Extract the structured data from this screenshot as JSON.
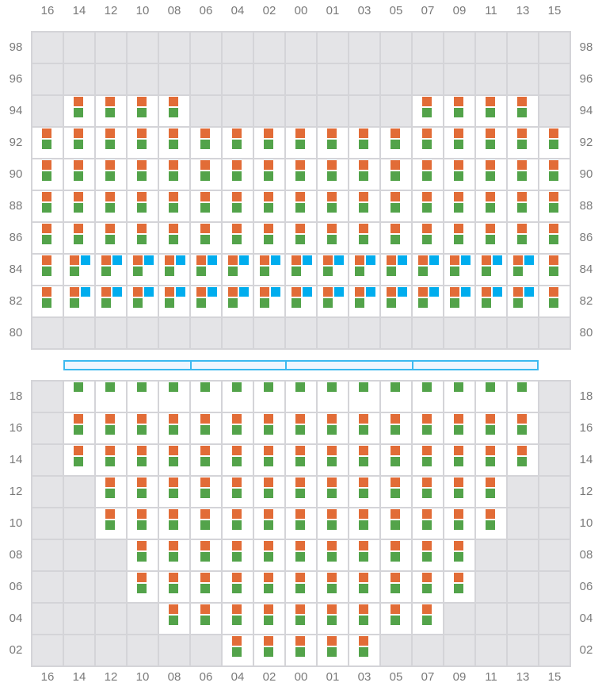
{
  "columns": [
    "16",
    "14",
    "12",
    "10",
    "08",
    "06",
    "04",
    "02",
    "00",
    "01",
    "03",
    "05",
    "07",
    "09",
    "11",
    "13",
    "15"
  ],
  "legend_colors": {
    "orange": "#e26c37",
    "green": "#53a34a",
    "blue": "#00adee",
    "empty_cell": "#e4e4e7"
  },
  "top_section": [
    {
      "label": "98",
      "cells": [
        "",
        "",
        "",
        "",
        "",
        "",
        "",
        "",
        "",
        "",
        "",
        "",
        "",
        "",
        "",
        "",
        ""
      ]
    },
    {
      "label": "96",
      "cells": [
        "",
        "",
        "",
        "",
        "",
        "",
        "",
        "",
        "",
        "",
        "",
        "",
        "",
        "",
        "",
        "",
        ""
      ]
    },
    {
      "label": "94",
      "cells": [
        "",
        "og",
        "og",
        "og",
        "og",
        "",
        "",
        "",
        "",
        "",
        "",
        "",
        "og",
        "og",
        "og",
        "og",
        ""
      ]
    },
    {
      "label": "92",
      "cells": [
        "og",
        "og",
        "og",
        "og",
        "og",
        "og",
        "og",
        "og",
        "og",
        "og",
        "og",
        "og",
        "og",
        "og",
        "og",
        "og",
        "og"
      ]
    },
    {
      "label": "90",
      "cells": [
        "og",
        "og",
        "og",
        "og",
        "og",
        "og",
        "og",
        "og",
        "og",
        "og",
        "og",
        "og",
        "og",
        "og",
        "og",
        "og",
        "og"
      ]
    },
    {
      "label": "88",
      "cells": [
        "og",
        "og",
        "og",
        "og",
        "og",
        "og",
        "og",
        "og",
        "og",
        "og",
        "og",
        "og",
        "og",
        "og",
        "og",
        "og",
        "og"
      ]
    },
    {
      "label": "86",
      "cells": [
        "og",
        "og",
        "og",
        "og",
        "og",
        "og",
        "og",
        "og",
        "og",
        "og",
        "og",
        "og",
        "og",
        "og",
        "og",
        "og",
        "og"
      ]
    },
    {
      "label": "84",
      "cells": [
        "og",
        "obg",
        "obg",
        "obg",
        "obg",
        "obg",
        "obg",
        "obg",
        "obg",
        "obg",
        "obg",
        "obg",
        "obg",
        "obg",
        "obg",
        "obg",
        "og"
      ]
    },
    {
      "label": "82",
      "cells": [
        "og",
        "obg",
        "obg",
        "obg",
        "obg",
        "obg",
        "obg",
        "obg",
        "obg",
        "obg",
        "obg",
        "obg",
        "obg",
        "obg",
        "obg",
        "obg",
        "og"
      ]
    },
    {
      "label": "80",
      "cells": [
        "",
        "",
        "",
        "",
        "",
        "",
        "",
        "",
        "",
        "",
        "",
        "",
        "",
        "",
        "",
        "",
        ""
      ]
    }
  ],
  "bottom_section": [
    {
      "label": "18",
      "cells": [
        "",
        "g",
        "g",
        "g",
        "g",
        "g",
        "g",
        "g",
        "g",
        "g",
        "g",
        "g",
        "g",
        "g",
        "g",
        "g",
        ""
      ]
    },
    {
      "label": "16",
      "cells": [
        "",
        "og",
        "og",
        "og",
        "og",
        "og",
        "og",
        "og",
        "og",
        "og",
        "og",
        "og",
        "og",
        "og",
        "og",
        "og",
        ""
      ]
    },
    {
      "label": "14",
      "cells": [
        "",
        "og",
        "og",
        "og",
        "og",
        "og",
        "og",
        "og",
        "og",
        "og",
        "og",
        "og",
        "og",
        "og",
        "og",
        "og",
        ""
      ]
    },
    {
      "label": "12",
      "cells": [
        "",
        "",
        "og",
        "og",
        "og",
        "og",
        "og",
        "og",
        "og",
        "og",
        "og",
        "og",
        "og",
        "og",
        "og",
        "",
        ""
      ]
    },
    {
      "label": "10",
      "cells": [
        "",
        "",
        "og",
        "og",
        "og",
        "og",
        "og",
        "og",
        "og",
        "og",
        "og",
        "og",
        "og",
        "og",
        "og",
        "",
        ""
      ]
    },
    {
      "label": "08",
      "cells": [
        "",
        "",
        "",
        "og",
        "og",
        "og",
        "og",
        "og",
        "og",
        "og",
        "og",
        "og",
        "og",
        "og",
        "",
        "",
        ""
      ]
    },
    {
      "label": "06",
      "cells": [
        "",
        "",
        "",
        "og",
        "og",
        "og",
        "og",
        "og",
        "og",
        "og",
        "og",
        "og",
        "og",
        "og",
        "",
        "",
        ""
      ]
    },
    {
      "label": "04",
      "cells": [
        "",
        "",
        "",
        "",
        "og",
        "og",
        "og",
        "og",
        "og",
        "og",
        "og",
        "og",
        "og",
        "",
        "",
        "",
        ""
      ]
    },
    {
      "label": "02",
      "cells": [
        "",
        "",
        "",
        "",
        "",
        "",
        "og",
        "og",
        "og",
        "og",
        "og",
        "",
        "",
        "",
        "",
        "",
        ""
      ]
    }
  ]
}
